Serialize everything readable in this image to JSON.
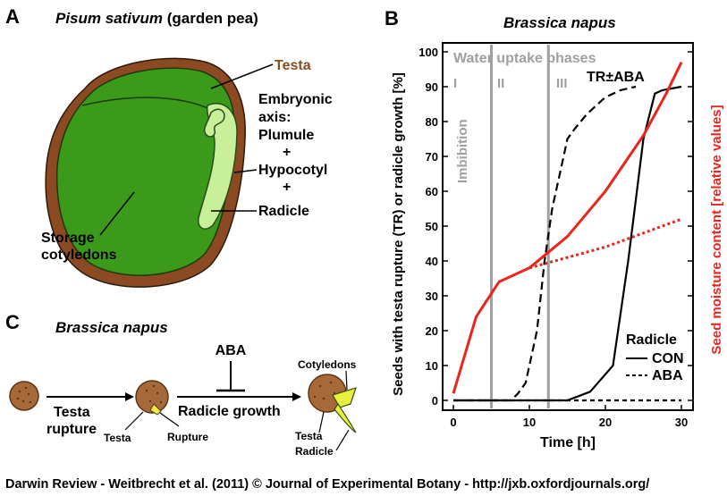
{
  "panel_a": {
    "letter": "A",
    "species_italic": "Pisum sativum",
    "species_common": " (garden pea)",
    "labels": {
      "testa": "Testa",
      "embryonic_lines": [
        "Embryonic",
        "axis:",
        "Plumule",
        "+",
        "Hypocotyl",
        "+",
        "Radicle"
      ],
      "storage_lines": [
        "Storage",
        "cotyledons"
      ]
    },
    "colors": {
      "seed_coat": "#8B4A22",
      "cotyledon": "#3C9A1A",
      "axis": "#C8F09A",
      "testa_label": "#8B4A22"
    }
  },
  "panel_b": {
    "letter": "B",
    "title": "Brassica napus",
    "phase_header": "Water uptake phases",
    "phase_labels": [
      "I",
      "II",
      "III"
    ],
    "imbibition_label": "Imbibition",
    "tr_label": "TR±ABA",
    "legend": {
      "title": "Radicle",
      "con": "CON",
      "aba": "ABA"
    }
  },
  "chart_data": {
    "type": "line",
    "xlabel": "Time [h]",
    "ylabel": "Seeds with testa rupture (TR) or radicle growth [%]",
    "y2label": "Seed moisture content [relative values]",
    "xlim": [
      0,
      30
    ],
    "ylim": [
      0,
      100
    ],
    "xticks": [
      0,
      10,
      20,
      30
    ],
    "yticks": [
      0,
      10,
      20,
      30,
      40,
      50,
      60,
      70,
      80,
      90,
      100
    ],
    "phase_boundaries_h": [
      5,
      12.5
    ],
    "series": [
      {
        "name": "TR±ABA",
        "color": "#000000",
        "dash": "long",
        "x": [
          0,
          7.6,
          8.5,
          9.5,
          11,
          12,
          13,
          14.5,
          15,
          16,
          17.5,
          20,
          22,
          24
        ],
        "y": [
          0,
          0,
          2,
          5,
          20,
          40,
          55,
          70,
          75,
          78,
          82,
          87,
          89,
          90
        ]
      },
      {
        "name": "Radicle CON",
        "color": "#000000",
        "dash": "solid",
        "x": [
          0,
          15,
          18,
          21,
          23,
          25,
          26.5,
          27.5,
          30
        ],
        "y": [
          0,
          0,
          2.5,
          10,
          40,
          75,
          88,
          89,
          90
        ]
      },
      {
        "name": "Radicle ABA",
        "color": "#000000",
        "dash": "short",
        "x": [
          0,
          30
        ],
        "y": [
          0,
          0
        ]
      },
      {
        "name": "moisture CON",
        "color": "#E8261C",
        "dash": "solid",
        "x": [
          0,
          3,
          6,
          10,
          15,
          20,
          25,
          28,
          30
        ],
        "y": [
          2,
          24,
          34,
          38,
          47,
          60,
          76,
          88,
          97
        ]
      },
      {
        "name": "moisture ABA",
        "color": "#E8261C",
        "dash": "dot",
        "x": [
          10,
          15,
          20,
          25,
          30
        ],
        "y": [
          38,
          41,
          44,
          48,
          52
        ]
      }
    ]
  },
  "panel_c": {
    "letter": "C",
    "title": "Brassica napus",
    "aba_label": "ABA",
    "arrow1_lines": [
      "Testa",
      "rupture"
    ],
    "arrow2_label": "Radicle growth",
    "seed2_labels": {
      "testa": "Testa",
      "rupture": "Rupture"
    },
    "seed3_labels": {
      "cotyledons": "Cotyledons",
      "testa": "Testa",
      "radicle": "Radicle"
    }
  },
  "footer": {
    "credit": "Darwin Review - Weitbrecht et al. (2011) © Journal of Experimental Botany - http://jxb.oxfordjournals.org/"
  }
}
